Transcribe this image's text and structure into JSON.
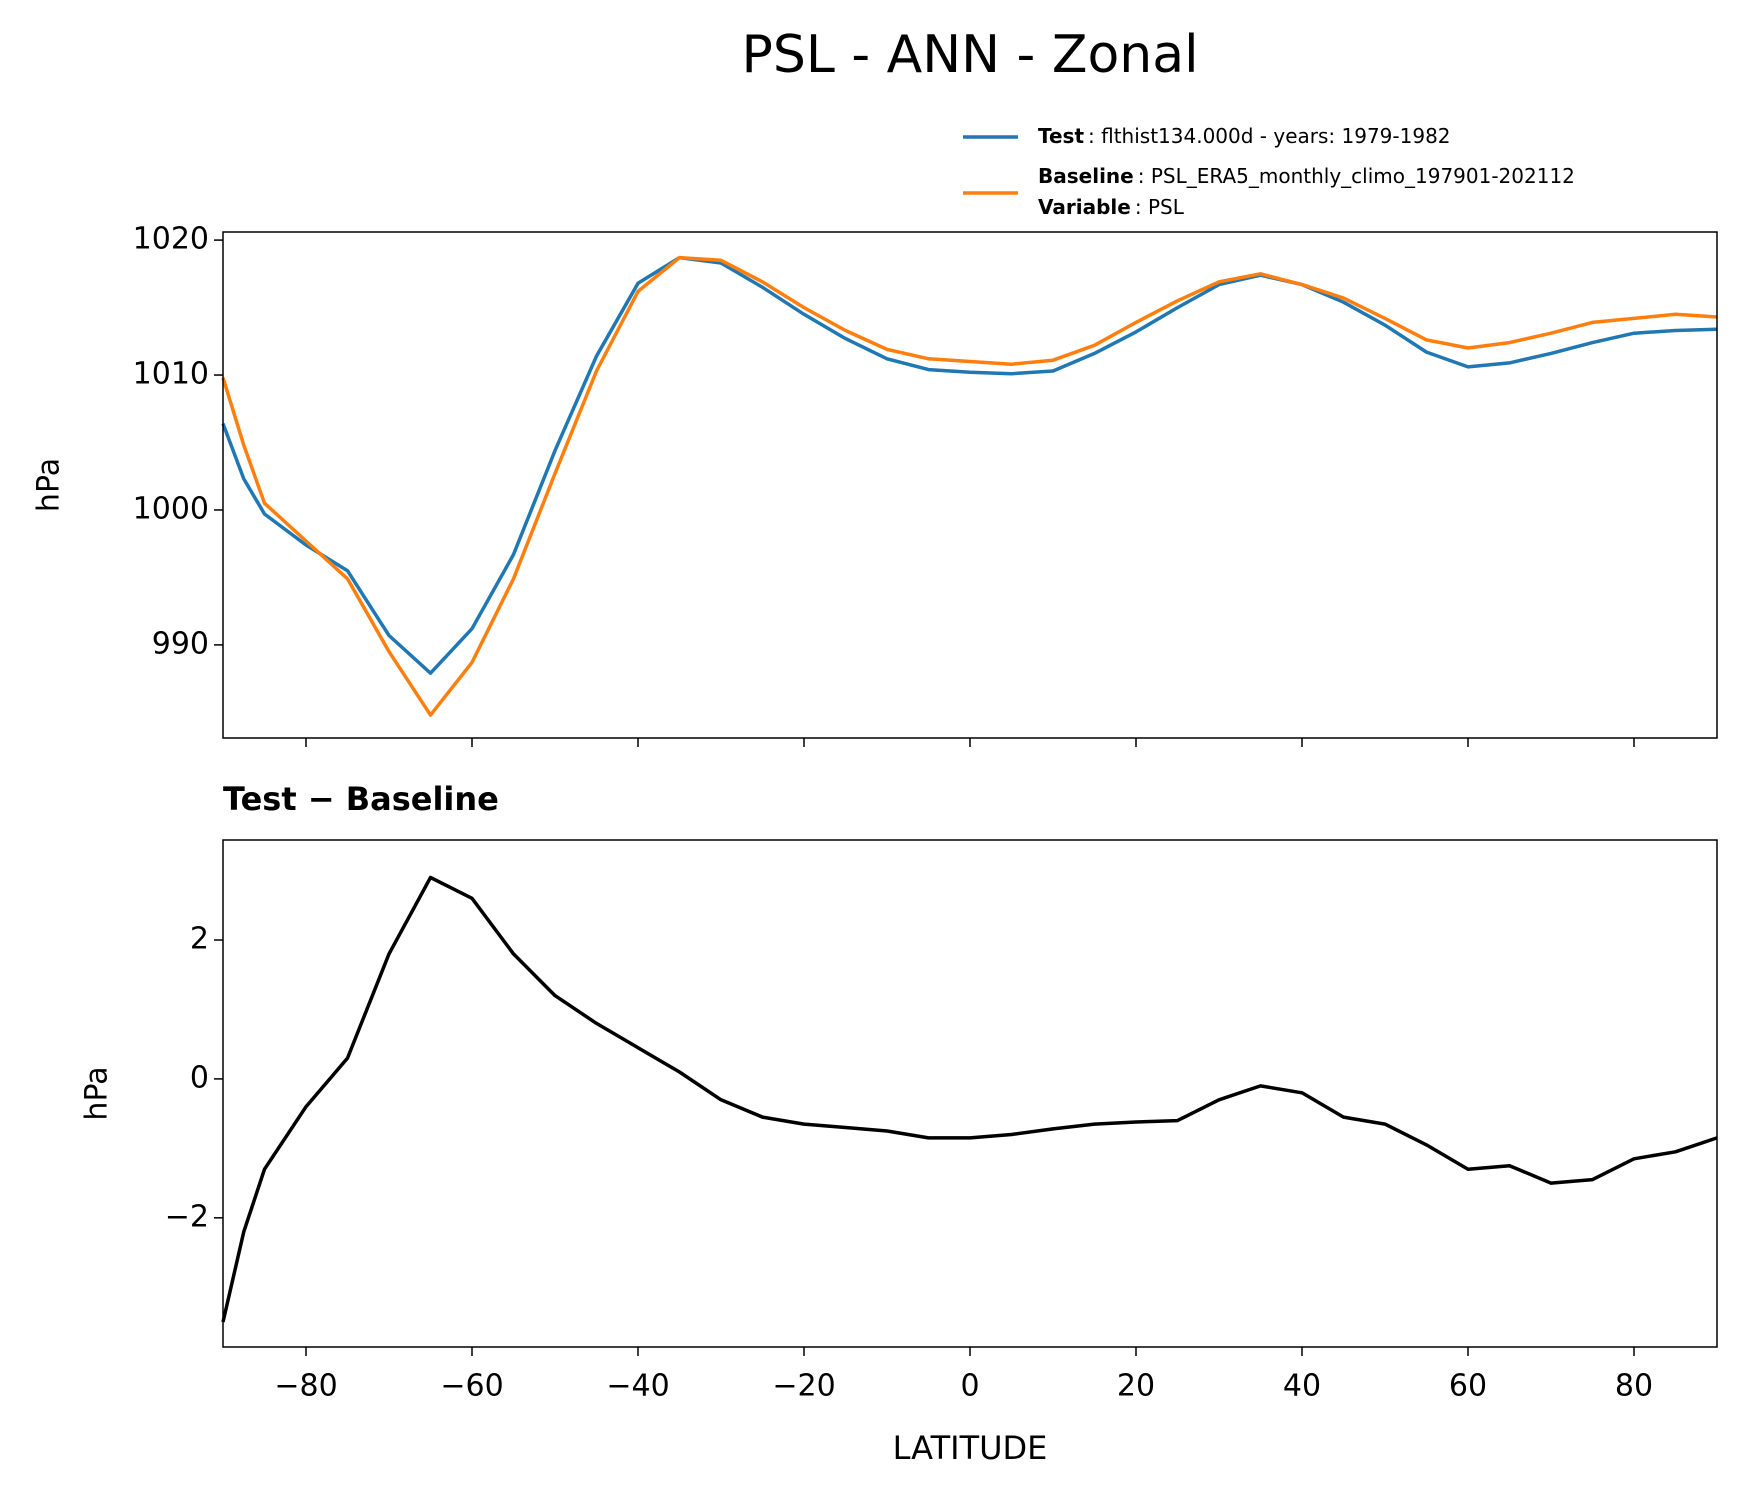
{
  "title": "PSL - ANN - Zonal",
  "chart_data": [
    {
      "type": "line",
      "ylabel": "hPa",
      "x": [
        -90,
        -87.5,
        -85,
        -80,
        -75,
        -70,
        -65,
        -60,
        -55,
        -50,
        -45,
        -40,
        -35,
        -30,
        -25,
        -20,
        -15,
        -10,
        -5,
        0,
        5,
        10,
        15,
        20,
        25,
        30,
        35,
        40,
        45,
        50,
        55,
        60,
        65,
        70,
        75,
        80,
        85,
        90
      ],
      "series": [
        {
          "name": "Test",
          "description": ": flthist134.000d - years: 1979-1982",
          "color": "#1f77b4",
          "values": [
            1006.4,
            1002.3,
            999.7,
            997.4,
            995.5,
            990.7,
            987.9,
            991.2,
            996.7,
            1004.4,
            1011.4,
            1016.8,
            1018.7,
            1018.3,
            1016.5,
            1014.5,
            1012.7,
            1011.2,
            1010.4,
            1010.2,
            1010.1,
            1010.3,
            1011.6,
            1013.2,
            1015.0,
            1016.7,
            1017.4,
            1016.7,
            1015.4,
            1013.7,
            1011.7,
            1010.6,
            1010.9,
            1011.6,
            1012.4,
            1013.1,
            1013.3,
            1013.4
          ]
        },
        {
          "name": "Baseline",
          "description": ": PSL_ERA5_monthly_climo_197901-202112",
          "color": "#ff7f0e",
          "values": [
            1009.8,
            1004.8,
            1000.5,
            997.7,
            994.9,
            989.5,
            984.8,
            988.7,
            994.9,
            1002.7,
            1010.3,
            1016.2,
            1018.7,
            1018.5,
            1016.9,
            1015.0,
            1013.3,
            1011.9,
            1011.2,
            1011.0,
            1010.8,
            1011.1,
            1012.2,
            1013.9,
            1015.5,
            1016.9,
            1017.5,
            1016.7,
            1015.7,
            1014.2,
            1012.6,
            1012.0,
            1012.4,
            1013.1,
            1013.9,
            1014.2,
            1014.5,
            1014.3
          ]
        }
      ],
      "legend_note": {
        "name": "Variable",
        "description": ": PSL"
      },
      "xlim": [
        -90,
        90
      ],
      "xticks": [
        -80,
        -60,
        -40,
        -20,
        0,
        20,
        40,
        60,
        80
      ],
      "ylim": [
        983.1,
        1020.6
      ],
      "yticks": [
        990,
        1000,
        1010,
        1020
      ]
    },
    {
      "type": "line",
      "title": "Test − Baseline",
      "ylabel": "hPa",
      "xlabel": "LATITUDE",
      "x": [
        -90,
        -87.5,
        -85,
        -80,
        -75,
        -70,
        -65,
        -60,
        -55,
        -50,
        -45,
        -40,
        -35,
        -30,
        -25,
        -20,
        -15,
        -10,
        -5,
        0,
        5,
        10,
        15,
        20,
        25,
        30,
        35,
        40,
        45,
        50,
        55,
        60,
        65,
        70,
        75,
        80,
        85,
        90
      ],
      "series": [
        {
          "color": "#000000",
          "values": [
            -3.5,
            -2.2,
            -1.3,
            -0.4,
            0.3,
            1.8,
            2.9,
            2.6,
            1.8,
            1.2,
            0.8,
            0.45,
            0.1,
            -0.3,
            -0.55,
            -0.65,
            -0.7,
            -0.75,
            -0.85,
            -0.85,
            -0.8,
            -0.72,
            -0.65,
            -0.62,
            -0.6,
            -0.3,
            -0.1,
            -0.2,
            -0.55,
            -0.65,
            -0.95,
            -1.3,
            -1.25,
            -1.5,
            -1.45,
            -1.15,
            -1.05,
            -0.85
          ]
        }
      ],
      "xlim": [
        -90,
        90
      ],
      "xticks": [
        {
          "value": -80,
          "label": "−80"
        },
        {
          "value": -60,
          "label": "−60"
        },
        {
          "value": -40,
          "label": "−40"
        },
        {
          "value": -20,
          "label": "−20"
        },
        0,
        20,
        40,
        60,
        80
      ],
      "ylim": [
        -3.86,
        3.44
      ],
      "yticks": [
        {
          "value": -2,
          "label": "−2"
        },
        0,
        2
      ]
    }
  ]
}
